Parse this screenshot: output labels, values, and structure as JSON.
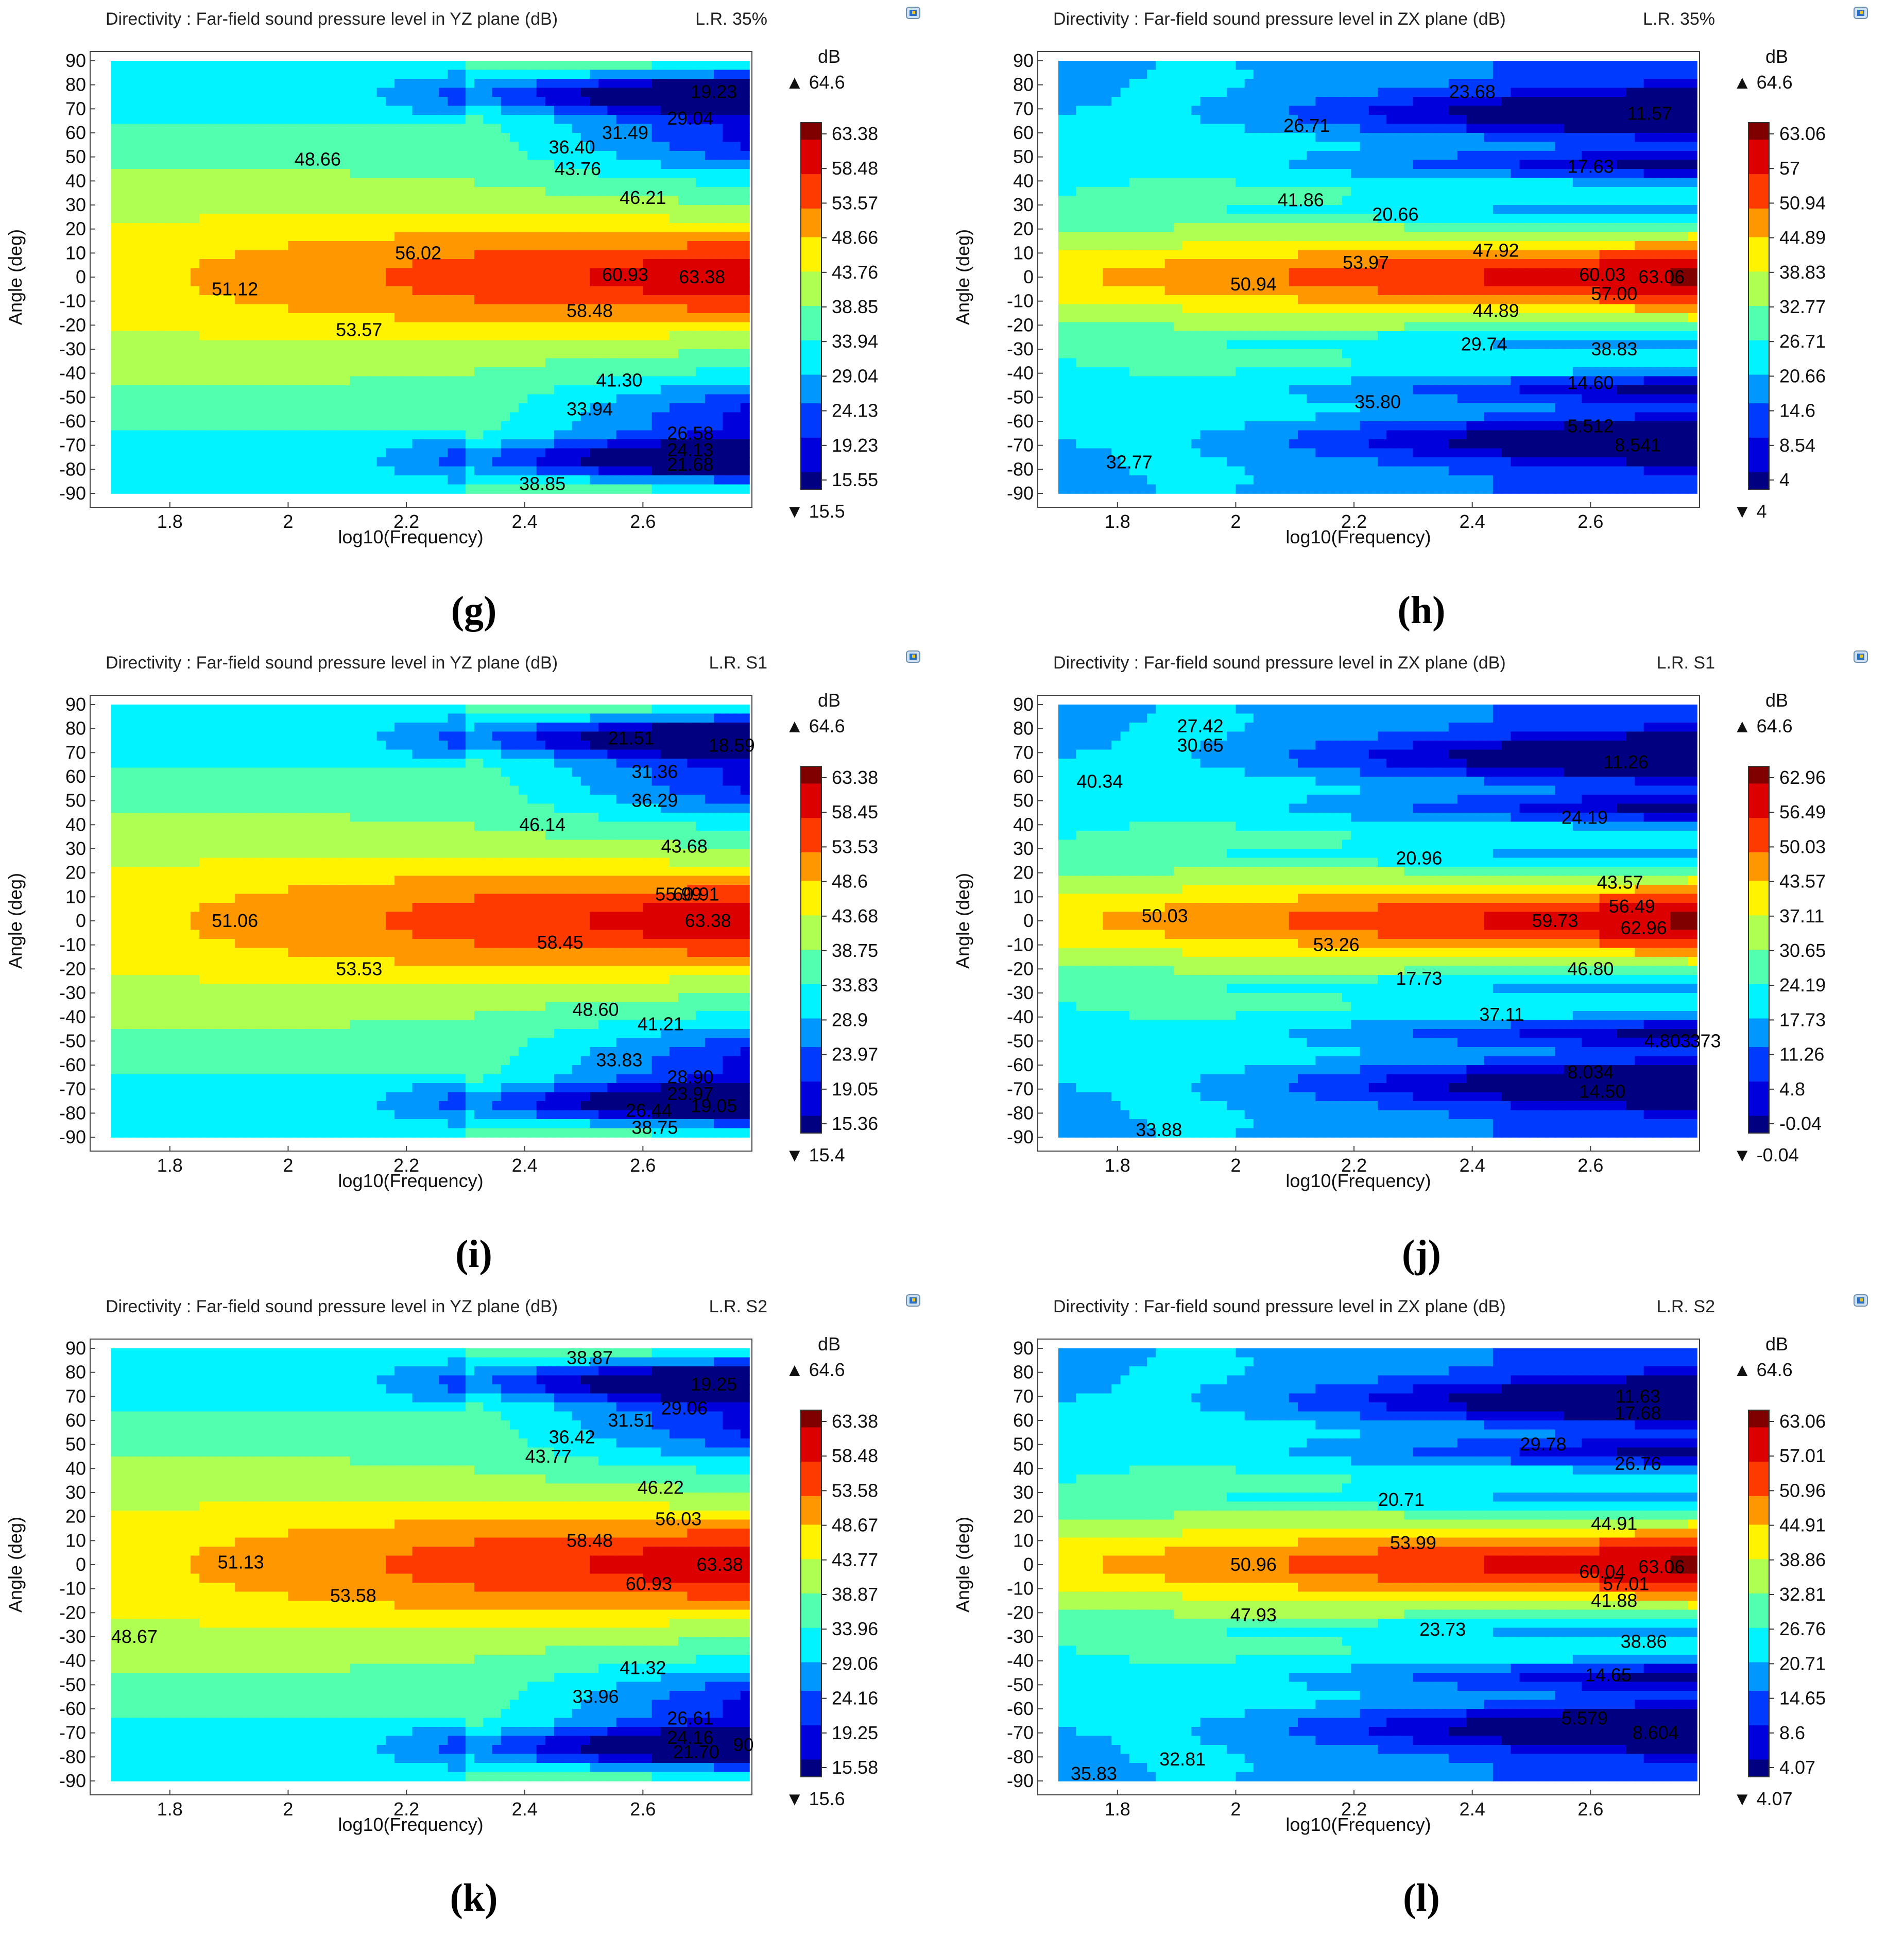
{
  "figure": {
    "title_prefix": "Directivity : Far-field sound pressure level in",
    "unit": "dB",
    "x_label": "log10(Frequency)",
    "y_label": "Angle (deg)",
    "max_marker": "▲",
    "min_marker": "▼"
  },
  "chart_data": [
    {
      "panel": "(g)",
      "type": "heatmap",
      "title": "Directivity : Far-field sound pressure level in YZ plane (dB)",
      "case": "L.R. 35%",
      "plane": "YZ",
      "xlabel": "log10(Frequency)",
      "ylabel": "Angle (deg)",
      "xlim": [
        1.7,
        2.78
      ],
      "ylim": [
        -90,
        90
      ],
      "x_ticks": [
        "1.8",
        "2",
        "2.2",
        "2.4",
        "2.6"
      ],
      "y_ticks": [
        "90",
        "80",
        "70",
        "60",
        "50",
        "40",
        "30",
        "20",
        "10",
        "0",
        "-10",
        "-20",
        "-30",
        "-40",
        "-50",
        "-60",
        "-70",
        "-80",
        "-90"
      ],
      "colorbar_unit": "dB",
      "colorbar_max": "64.6",
      "colorbar_min": "15.5",
      "colorbar_ticks": [
        "63.38",
        "58.48",
        "53.57",
        "48.66",
        "43.76",
        "38.85",
        "33.94",
        "29.04",
        "24.13",
        "19.23",
        "15.55"
      ],
      "contour_labels": [
        {
          "text": "19.23",
          "x": 2.72,
          "y": 77
        },
        {
          "text": "29.04",
          "x": 2.68,
          "y": 66
        },
        {
          "text": "31.49",
          "x": 2.57,
          "y": 60
        },
        {
          "text": "36.40",
          "x": 2.48,
          "y": 54
        },
        {
          "text": "48.66",
          "x": 2.05,
          "y": 49
        },
        {
          "text": "43.76",
          "x": 2.49,
          "y": 45
        },
        {
          "text": "46.21",
          "x": 2.6,
          "y": 33
        },
        {
          "text": "56.02",
          "x": 2.22,
          "y": 10
        },
        {
          "text": "60.93",
          "x": 2.57,
          "y": 1
        },
        {
          "text": "63.38",
          "x": 2.7,
          "y": 0
        },
        {
          "text": "51.12",
          "x": 1.91,
          "y": -5
        },
        {
          "text": "58.48",
          "x": 2.51,
          "y": -14
        },
        {
          "text": "53.57",
          "x": 2.12,
          "y": -22
        },
        {
          "text": "41.30",
          "x": 2.56,
          "y": -43
        },
        {
          "text": "33.94",
          "x": 2.51,
          "y": -55
        },
        {
          "text": "26.58",
          "x": 2.68,
          "y": -65
        },
        {
          "text": "24.13",
          "x": 2.68,
          "y": -72
        },
        {
          "text": "21.68",
          "x": 2.68,
          "y": -78
        },
        {
          "text": "38.85",
          "x": 2.43,
          "y": -86
        }
      ]
    },
    {
      "panel": "(h)",
      "type": "heatmap",
      "title": "Directivity : Far-field sound pressure level in ZX plane (dB)",
      "case": "L.R. 35%",
      "plane": "ZX",
      "xlabel": "log10(Frequency)",
      "ylabel": "Angle (deg)",
      "xlim": [
        1.7,
        2.78
      ],
      "ylim": [
        -90,
        90
      ],
      "x_ticks": [
        "1.8",
        "2",
        "2.2",
        "2.4",
        "2.6"
      ],
      "y_ticks": [
        "90",
        "80",
        "70",
        "60",
        "50",
        "40",
        "30",
        "20",
        "10",
        "0",
        "-10",
        "-20",
        "-30",
        "-40",
        "-50",
        "-60",
        "-70",
        "-80",
        "-90"
      ],
      "colorbar_unit": "dB",
      "colorbar_max": "64.6",
      "colorbar_min": "4",
      "colorbar_ticks": [
        "63.06",
        "57",
        "50.94",
        "44.89",
        "38.83",
        "32.77",
        "26.71",
        "20.66",
        "14.6",
        "8.54",
        "4"
      ],
      "contour_labels": [
        {
          "text": "23.68",
          "x": 2.4,
          "y": 77
        },
        {
          "text": "11.57",
          "x": 2.7,
          "y": 68
        },
        {
          "text": "26.71",
          "x": 2.12,
          "y": 63
        },
        {
          "text": "17.63",
          "x": 2.6,
          "y": 46
        },
        {
          "text": "41.86",
          "x": 2.11,
          "y": 32
        },
        {
          "text": "20.66",
          "x": 2.27,
          "y": 26
        },
        {
          "text": "47.92",
          "x": 2.44,
          "y": 11
        },
        {
          "text": "53.97",
          "x": 2.22,
          "y": 6
        },
        {
          "text": "60.03",
          "x": 2.62,
          "y": 1
        },
        {
          "text": "63.06",
          "x": 2.72,
          "y": 0
        },
        {
          "text": "50.94",
          "x": 2.03,
          "y": -3
        },
        {
          "text": "57.00",
          "x": 2.64,
          "y": -7
        },
        {
          "text": "44.89",
          "x": 2.44,
          "y": -14
        },
        {
          "text": "29.74",
          "x": 2.42,
          "y": -28
        },
        {
          "text": "38.83",
          "x": 2.64,
          "y": -30
        },
        {
          "text": "14.60",
          "x": 2.6,
          "y": -44
        },
        {
          "text": "35.80",
          "x": 2.24,
          "y": -52
        },
        {
          "text": "5.512",
          "x": 2.6,
          "y": -62
        },
        {
          "text": "8.541",
          "x": 2.68,
          "y": -70
        },
        {
          "text": "32.77",
          "x": 1.82,
          "y": -77
        }
      ]
    },
    {
      "panel": "(i)",
      "type": "heatmap",
      "title": "Directivity : Far-field sound pressure level in YZ plane (dB)",
      "case": "L.R. S1",
      "plane": "YZ",
      "xlabel": "log10(Frequency)",
      "ylabel": "Angle (deg)",
      "xlim": [
        1.7,
        2.78
      ],
      "ylim": [
        -90,
        90
      ],
      "x_ticks": [
        "1.8",
        "2",
        "2.2",
        "2.4",
        "2.6"
      ],
      "y_ticks": [
        "90",
        "80",
        "70",
        "60",
        "50",
        "40",
        "30",
        "20",
        "10",
        "0",
        "-10",
        "-20",
        "-30",
        "-40",
        "-50",
        "-60",
        "-70",
        "-80",
        "-90"
      ],
      "colorbar_unit": "dB",
      "colorbar_max": "64.6",
      "colorbar_min": "15.4",
      "colorbar_ticks": [
        "63.38",
        "58.45",
        "53.53",
        "48.6",
        "43.68",
        "38.75",
        "33.83",
        "28.9",
        "23.97",
        "19.05",
        "15.36"
      ],
      "contour_labels": [
        {
          "text": "21.51",
          "x": 2.58,
          "y": 76
        },
        {
          "text": "18.59",
          "x": 2.75,
          "y": 73
        },
        {
          "text": "31.36",
          "x": 2.62,
          "y": 62
        },
        {
          "text": "36.29",
          "x": 2.62,
          "y": 50
        },
        {
          "text": "46.14",
          "x": 2.43,
          "y": 40
        },
        {
          "text": "43.68",
          "x": 2.67,
          "y": 31
        },
        {
          "text": "55.99",
          "x": 2.66,
          "y": 11
        },
        {
          "text": "60.91",
          "x": 2.69,
          "y": 11
        },
        {
          "text": "51.06",
          "x": 1.91,
          "y": 0
        },
        {
          "text": "63.38",
          "x": 2.71,
          "y": 0
        },
        {
          "text": "58.45",
          "x": 2.46,
          "y": -9
        },
        {
          "text": "53.53",
          "x": 2.12,
          "y": -20
        },
        {
          "text": "48.60",
          "x": 2.52,
          "y": -37
        },
        {
          "text": "41.21",
          "x": 2.63,
          "y": -43
        },
        {
          "text": "33.83",
          "x": 2.56,
          "y": -58
        },
        {
          "text": "28.90",
          "x": 2.68,
          "y": -65
        },
        {
          "text": "23.97",
          "x": 2.68,
          "y": -72
        },
        {
          "text": "19.05",
          "x": 2.72,
          "y": -77
        },
        {
          "text": "26.44",
          "x": 2.61,
          "y": -79
        },
        {
          "text": "38.75",
          "x": 2.62,
          "y": -86
        }
      ]
    },
    {
      "panel": "(j)",
      "type": "heatmap",
      "title": "Directivity : Far-field sound pressure level in ZX plane (dB)",
      "case": "L.R. S1",
      "plane": "ZX",
      "xlabel": "log10(Frequency)",
      "ylabel": "Angle (deg)",
      "xlim": [
        1.7,
        2.78
      ],
      "ylim": [
        -90,
        90
      ],
      "x_ticks": [
        "1.8",
        "2",
        "2.2",
        "2.4",
        "2.6"
      ],
      "y_ticks": [
        "90",
        "80",
        "70",
        "60",
        "50",
        "40",
        "30",
        "20",
        "10",
        "0",
        "-10",
        "-20",
        "-30",
        "-40",
        "-50",
        "-60",
        "-70",
        "-80",
        "-90"
      ],
      "colorbar_unit": "dB",
      "colorbar_max": "64.6",
      "colorbar_min": "-0.04",
      "colorbar_ticks": [
        "62.96",
        "56.49",
        "50.03",
        "43.57",
        "37.11",
        "30.65",
        "24.19",
        "17.73",
        "11.26",
        "4.8",
        "-0.04"
      ],
      "contour_labels": [
        {
          "text": "27.42",
          "x": 1.94,
          "y": 81
        },
        {
          "text": "30.65",
          "x": 1.94,
          "y": 73
        },
        {
          "text": "11.26",
          "x": 2.66,
          "y": 66
        },
        {
          "text": "40.34",
          "x": 1.77,
          "y": 58
        },
        {
          "text": "24.19",
          "x": 2.59,
          "y": 43
        },
        {
          "text": "20.96",
          "x": 2.31,
          "y": 26
        },
        {
          "text": "43.57",
          "x": 2.65,
          "y": 16
        },
        {
          "text": "56.49",
          "x": 2.67,
          "y": 6
        },
        {
          "text": "50.03",
          "x": 1.88,
          "y": 2
        },
        {
          "text": "59.73",
          "x": 2.54,
          "y": 0
        },
        {
          "text": "62.96",
          "x": 2.69,
          "y": -3
        },
        {
          "text": "53.26",
          "x": 2.17,
          "y": -10
        },
        {
          "text": "46.80",
          "x": 2.6,
          "y": -20
        },
        {
          "text": "17.73",
          "x": 2.31,
          "y": -24
        },
        {
          "text": "37.11",
          "x": 2.45,
          "y": -39
        },
        {
          "text": "4.803",
          "x": 2.73,
          "y": -50
        },
        {
          "text": ".373",
          "x": 2.79,
          "y": -50
        },
        {
          "text": "8.034",
          "x": 2.6,
          "y": -63
        },
        {
          "text": "14.50",
          "x": 2.62,
          "y": -71
        },
        {
          "text": "33.88",
          "x": 1.87,
          "y": -87
        }
      ]
    },
    {
      "panel": "(k)",
      "type": "heatmap",
      "title": "Directivity : Far-field sound pressure level in YZ plane (dB)",
      "case": "L.R. S2",
      "plane": "YZ",
      "xlabel": "log10(Frequency)",
      "ylabel": "Angle (deg)",
      "xlim": [
        1.7,
        2.78
      ],
      "ylim": [
        -90,
        90
      ],
      "x_ticks": [
        "1.8",
        "2",
        "2.2",
        "2.4",
        "2.6"
      ],
      "y_ticks": [
        "90",
        "80",
        "70",
        "60",
        "50",
        "40",
        "30",
        "20",
        "10",
        "0",
        "-10",
        "-20",
        "-30",
        "-40",
        "-50",
        "-60",
        "-70",
        "-80",
        "-90"
      ],
      "colorbar_unit": "dB",
      "colorbar_max": "64.6",
      "colorbar_min": "15.6",
      "colorbar_ticks": [
        "63.38",
        "58.48",
        "53.58",
        "48.67",
        "43.77",
        "38.87",
        "33.96",
        "29.06",
        "24.16",
        "19.25",
        "15.58"
      ],
      "contour_labels": [
        {
          "text": "38.87",
          "x": 2.51,
          "y": 86
        },
        {
          "text": "19.25",
          "x": 2.72,
          "y": 75
        },
        {
          "text": "29.06",
          "x": 2.67,
          "y": 65
        },
        {
          "text": "31.51",
          "x": 2.58,
          "y": 60
        },
        {
          "text": "36.42",
          "x": 2.48,
          "y": 53
        },
        {
          "text": "43.77",
          "x": 2.44,
          "y": 45
        },
        {
          "text": "46.22",
          "x": 2.63,
          "y": 32
        },
        {
          "text": "56.03",
          "x": 2.66,
          "y": 19
        },
        {
          "text": "58.48",
          "x": 2.51,
          "y": 10
        },
        {
          "text": "51.13",
          "x": 1.92,
          "y": 1
        },
        {
          "text": "63.38",
          "x": 2.73,
          "y": 0
        },
        {
          "text": "60.93",
          "x": 2.61,
          "y": -8
        },
        {
          "text": "53.58",
          "x": 2.11,
          "y": -13
        },
        {
          "text": "48.67",
          "x": 1.74,
          "y": -30
        },
        {
          "text": "41.32",
          "x": 2.6,
          "y": -43
        },
        {
          "text": "33.96",
          "x": 2.52,
          "y": -55
        },
        {
          "text": "26.61",
          "x": 2.68,
          "y": -64
        },
        {
          "text": "24.16",
          "x": 2.68,
          "y": -72
        },
        {
          "text": "21.70",
          "x": 2.69,
          "y": -78
        },
        {
          "text": "90",
          "x": 2.77,
          "y": -75
        }
      ]
    },
    {
      "panel": "(l)",
      "type": "heatmap",
      "title": "Directivity : Far-field sound pressure level in ZX plane (dB)",
      "case": "L.R. S2",
      "plane": "ZX",
      "xlabel": "log10(Frequency)",
      "ylabel": "Angle (deg)",
      "xlim": [
        1.7,
        2.78
      ],
      "ylim": [
        -90,
        90
      ],
      "x_ticks": [
        "1.8",
        "2",
        "2.2",
        "2.4",
        "2.6"
      ],
      "y_ticks": [
        "90",
        "80",
        "70",
        "60",
        "50",
        "40",
        "30",
        "20",
        "10",
        "0",
        "-10",
        "-20",
        "-30",
        "-40",
        "-50",
        "-60",
        "-70",
        "-80",
        "-90"
      ],
      "colorbar_unit": "dB",
      "colorbar_max": "64.6",
      "colorbar_min": "4.07",
      "colorbar_ticks": [
        "63.06",
        "57.01",
        "50.96",
        "44.91",
        "38.86",
        "32.81",
        "26.76",
        "20.71",
        "14.65",
        "8.6",
        "4.07"
      ],
      "contour_labels": [
        {
          "text": "11.63",
          "x": 2.68,
          "y": 70
        },
        {
          "text": "17.68",
          "x": 2.68,
          "y": 63
        },
        {
          "text": "29.78",
          "x": 2.52,
          "y": 50
        },
        {
          "text": "26.76",
          "x": 2.68,
          "y": 42
        },
        {
          "text": "20.71",
          "x": 2.28,
          "y": 27
        },
        {
          "text": "44.91",
          "x": 2.64,
          "y": 17
        },
        {
          "text": "53.99",
          "x": 2.3,
          "y": 9
        },
        {
          "text": "50.96",
          "x": 2.03,
          "y": 0
        },
        {
          "text": "60.04",
          "x": 2.62,
          "y": -3
        },
        {
          "text": "63.06",
          "x": 2.72,
          "y": -1
        },
        {
          "text": "57.01",
          "x": 2.66,
          "y": -8
        },
        {
          "text": "41.88",
          "x": 2.64,
          "y": -15
        },
        {
          "text": "47.93",
          "x": 2.03,
          "y": -21
        },
        {
          "text": "23.73",
          "x": 2.35,
          "y": -27
        },
        {
          "text": "38.86",
          "x": 2.69,
          "y": -32
        },
        {
          "text": "14.65",
          "x": 2.63,
          "y": -46
        },
        {
          "text": "5.579",
          "x": 2.59,
          "y": -64
        },
        {
          "text": "8.604",
          "x": 2.71,
          "y": -70
        },
        {
          "text": "32.81",
          "x": 1.91,
          "y": -81
        },
        {
          "text": "35.83",
          "x": 1.76,
          "y": -87
        }
      ]
    }
  ]
}
